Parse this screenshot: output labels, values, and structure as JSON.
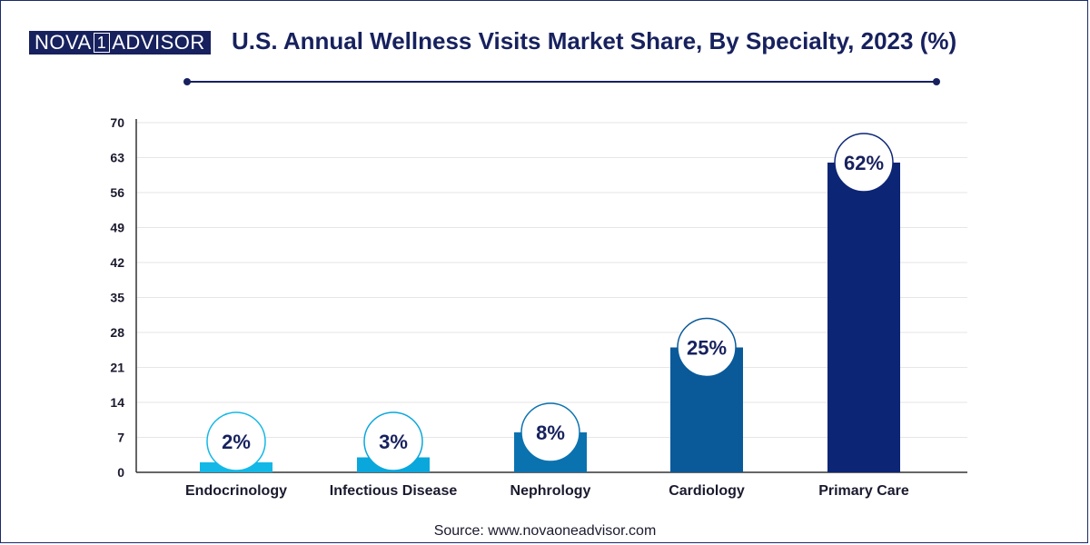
{
  "brand": {
    "left": "NOVA",
    "digit": "1",
    "right": "ADVISOR"
  },
  "colors": {
    "navy": "#17215e",
    "bars": [
      "#14b8e6",
      "#0aa7dc",
      "#0b72b0",
      "#0a5a9a",
      "#0d2575"
    ]
  },
  "chart_data": {
    "type": "bar",
    "title": "U.S. Annual Wellness Visits Market Share, By Specialty, 2023 (%)",
    "categories": [
      "Endocrinology",
      "Infectious Disease",
      "Nephrology",
      "Cardiology",
      "Primary Care"
    ],
    "values": [
      2,
      3,
      8,
      25,
      62
    ],
    "value_labels": [
      "2%",
      "3%",
      "8%",
      "25%",
      "62%"
    ],
    "ylim": [
      0,
      70
    ],
    "yticks": [
      0,
      7,
      14,
      21,
      28,
      35,
      42,
      49,
      56,
      63,
      70
    ],
    "xlabel": "",
    "ylabel": "",
    "grid": true
  },
  "source": "Source: www.novaoneadvisor.com"
}
